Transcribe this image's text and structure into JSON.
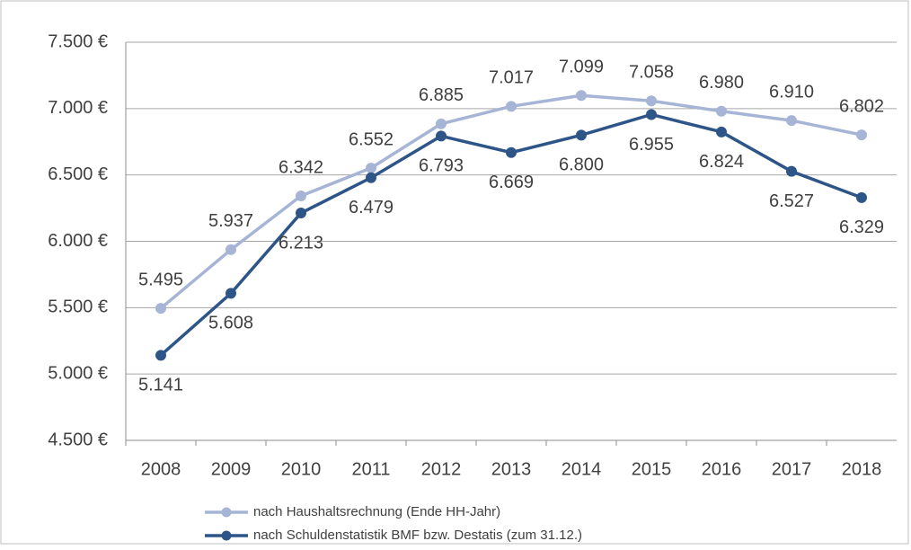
{
  "chart_data": {
    "type": "line",
    "categories": [
      "2008",
      "2009",
      "2010",
      "2011",
      "2012",
      "2013",
      "2014",
      "2015",
      "2016",
      "2017",
      "2018"
    ],
    "series": [
      {
        "name": "nach Haushaltsrechnung (Ende HH-Jahr)",
        "color": "#a6b5d6",
        "values": [
          5495,
          5937,
          6342,
          6552,
          6885,
          7017,
          7099,
          7058,
          6980,
          6910,
          6802
        ],
        "value_labels": [
          "5.495",
          "5.937",
          "6.342",
          "6.552",
          "6.885",
          "7.017",
          "7.099",
          "7.058",
          "6.980",
          "6.910",
          "6.802"
        ]
      },
      {
        "name": "nach Schuldenstatistik BMF bzw. Destatis (zum 31.12.)",
        "color": "#2e5588",
        "values": [
          5141,
          5608,
          6213,
          6479,
          6793,
          6669,
          6800,
          6955,
          6824,
          6527,
          6329
        ],
        "value_labels": [
          "5.141",
          "5.608",
          "6.213",
          "6.479",
          "6.793",
          "6.669",
          "6.800",
          "6.955",
          "6.824",
          "6.527",
          "6.329"
        ]
      }
    ],
    "ylim": [
      4500,
      7500
    ],
    "yticks": [
      {
        "value": 4500,
        "label": "4.500 €"
      },
      {
        "value": 5000,
        "label": "5.000 €"
      },
      {
        "value": 5500,
        "label": "5.500 €"
      },
      {
        "value": 6000,
        "label": "6.000 €"
      },
      {
        "value": 6500,
        "label": "6.500 €"
      },
      {
        "value": 7000,
        "label": "7.000 €"
      },
      {
        "value": 7500,
        "label": "7.500 €"
      }
    ],
    "grid": true
  }
}
